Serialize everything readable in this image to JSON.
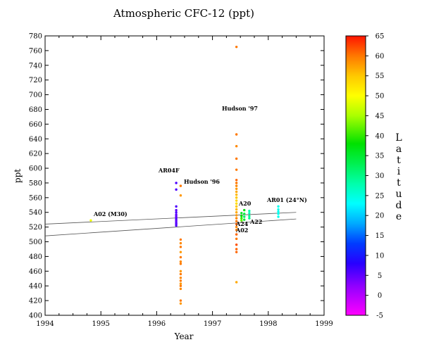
{
  "chart_data": {
    "type": "scatter",
    "title": "Atmospheric CFC-12 (ppt)",
    "xlabel": "Year",
    "ylabel": "ppt",
    "xlim": [
      1994,
      1999
    ],
    "ylim": [
      400,
      780
    ],
    "x_ticks": [
      "1994",
      "1995",
      "1996",
      "1997",
      "1998",
      "1999"
    ],
    "y_ticks": [
      "400",
      "420",
      "440",
      "460",
      "480",
      "500",
      "520",
      "540",
      "560",
      "580",
      "600",
      "620",
      "640",
      "660",
      "680",
      "700",
      "720",
      "740",
      "760",
      "780"
    ],
    "grid": false,
    "colorbar": {
      "label": "Latitude",
      "range": [
        -5,
        65
      ],
      "ticks": [
        "-5",
        "0",
        "5",
        "10",
        "15",
        "20",
        "25",
        "30",
        "35",
        "40",
        "45",
        "50",
        "55",
        "60",
        "65"
      ]
    },
    "reference_lines": [
      {
        "x": [
          1994,
          1998.5
        ],
        "y": [
          524,
          540
        ]
      },
      {
        "x": [
          1994,
          1998.5
        ],
        "y": [
          508,
          531
        ]
      }
    ],
    "series": [
      {
        "name": "A02 (M30)",
        "points": [
          [
            1994.82,
            529,
            49
          ]
        ]
      },
      {
        "name": "AR04F",
        "points": [
          [
            1996.35,
            580,
            6
          ],
          [
            1996.35,
            571,
            6
          ],
          [
            1996.35,
            548,
            6
          ],
          [
            1996.35,
            543,
            5
          ],
          [
            1996.35,
            540,
            6
          ],
          [
            1996.35,
            537,
            5
          ],
          [
            1996.35,
            535,
            5
          ],
          [
            1996.35,
            533,
            5
          ],
          [
            1996.35,
            531,
            6
          ],
          [
            1996.35,
            529,
            5
          ],
          [
            1996.35,
            527,
            5
          ],
          [
            1996.35,
            525,
            6
          ],
          [
            1996.35,
            524,
            5
          ],
          [
            1996.35,
            522,
            6
          ]
        ]
      },
      {
        "name": "Hudson '96",
        "points": [
          [
            1996.43,
            576,
            60
          ],
          [
            1996.43,
            563,
            58
          ],
          [
            1996.43,
            503,
            60
          ],
          [
            1996.43,
            498,
            59
          ],
          [
            1996.43,
            493,
            60
          ],
          [
            1996.43,
            486,
            58
          ],
          [
            1996.43,
            479,
            60
          ],
          [
            1996.43,
            473,
            59
          ],
          [
            1996.43,
            470,
            60
          ],
          [
            1996.43,
            460,
            58
          ],
          [
            1996.43,
            456,
            60
          ],
          [
            1996.43,
            451,
            59
          ],
          [
            1996.43,
            447,
            60
          ],
          [
            1996.43,
            443,
            58
          ],
          [
            1996.43,
            440,
            60
          ],
          [
            1996.43,
            436,
            59
          ],
          [
            1996.43,
            420,
            60
          ],
          [
            1996.43,
            416,
            58
          ]
        ]
      },
      {
        "name": "Hudson '97",
        "points": [
          [
            1997.43,
            765,
            60
          ],
          [
            1997.43,
            646,
            60
          ],
          [
            1997.43,
            630,
            59
          ],
          [
            1997.43,
            613,
            60
          ],
          [
            1997.43,
            598,
            60
          ],
          [
            1997.43,
            584,
            61
          ],
          [
            1997.43,
            580,
            60
          ],
          [
            1997.43,
            576,
            59
          ],
          [
            1997.43,
            572,
            58
          ],
          [
            1997.43,
            568,
            57
          ],
          [
            1997.43,
            564,
            56
          ],
          [
            1997.43,
            560,
            55
          ],
          [
            1997.43,
            556,
            54
          ],
          [
            1997.43,
            552,
            53
          ],
          [
            1997.43,
            548,
            55
          ],
          [
            1997.43,
            544,
            56
          ],
          [
            1997.43,
            540,
            57
          ],
          [
            1997.43,
            536,
            58
          ],
          [
            1997.43,
            532,
            59
          ],
          [
            1997.43,
            528,
            60
          ],
          [
            1997.43,
            524,
            61
          ],
          [
            1997.43,
            520,
            59
          ],
          [
            1997.43,
            516,
            60
          ],
          [
            1997.43,
            510,
            61
          ],
          [
            1997.43,
            504,
            60
          ],
          [
            1997.43,
            496,
            62
          ],
          [
            1997.43,
            490,
            61
          ],
          [
            1997.43,
            486,
            61
          ],
          [
            1997.43,
            445,
            57
          ]
        ]
      },
      {
        "name": "A20",
        "points": [
          [
            1997.52,
            539,
            36
          ],
          [
            1997.52,
            535,
            38
          ],
          [
            1997.52,
            532,
            40
          ],
          [
            1997.52,
            529,
            42
          ],
          [
            1997.57,
            543,
            37
          ],
          [
            1997.57,
            538,
            34
          ],
          [
            1997.57,
            534,
            32
          ],
          [
            1997.57,
            530,
            35
          ]
        ]
      },
      {
        "name": "A22",
        "points": [
          [
            1997.66,
            542,
            28
          ],
          [
            1997.66,
            539,
            27
          ],
          [
            1997.66,
            535,
            29
          ],
          [
            1997.66,
            532,
            30
          ]
        ]
      },
      {
        "name": "AR01 (24°N)",
        "points": [
          [
            1998.18,
            548,
            24
          ],
          [
            1998.18,
            544,
            24
          ],
          [
            1998.18,
            541,
            24
          ],
          [
            1998.18,
            538,
            24
          ],
          [
            1998.18,
            534,
            24
          ]
        ]
      }
    ],
    "annotations": [
      "A02 (M30)",
      "AR04F",
      "Hudson '96",
      "Hudson '97",
      "A20",
      "A24",
      "A02",
      "A22",
      "AR01 (24°N)"
    ]
  }
}
